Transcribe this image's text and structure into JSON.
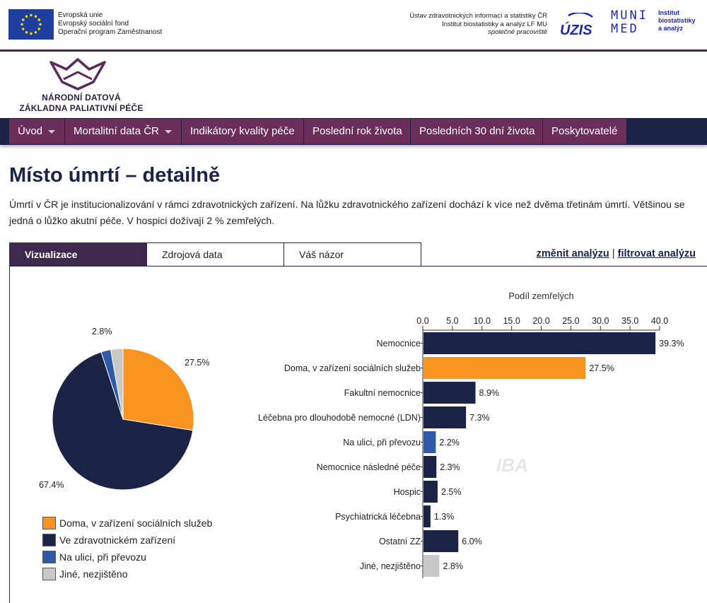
{
  "header": {
    "eu_lines": [
      "Evropská unie",
      "Evropský sociální fond",
      "Operační program Zaměstnanost"
    ],
    "uzis_lines": [
      "Ústav zdravotnických informací a statistiky ČR",
      "Institut biostatistiky a analýz LF MU"
    ],
    "uzis_italic": "společné pracoviště",
    "uzis_logo_text": "ÚZIS",
    "muni_line1": "MUNI",
    "muni_line2": "MED",
    "muni_sub": [
      "Institut",
      "biostatistiky",
      "a analýz"
    ]
  },
  "brand": {
    "line1": "NÁRODNÍ DATOVÁ",
    "line2": "ZÁKLADNA PALIATIVNÍ PÉČE"
  },
  "nav": [
    {
      "label": "Úvod",
      "dropdown": true
    },
    {
      "label": "Mortalitní data ČR",
      "dropdown": true
    },
    {
      "label": "Indikátory kvality péče",
      "dropdown": false
    },
    {
      "label": "Poslední rok života",
      "dropdown": false
    },
    {
      "label": "Posledních 30 dní života",
      "dropdown": false
    },
    {
      "label": "Poskytovatelé",
      "dropdown": false
    }
  ],
  "page": {
    "title": "Místo úmrtí – detailně",
    "intro": "Úmrtí v ČR je institucionalizování v rámci zdravotnických zařízení. Na lůžku zdravotnického zařízení dochází k více než dvěma třetinám úmrtí. Většinou se jedná o lůžko akutní péče. V hospici dožívají 2 % zemřelých."
  },
  "tabs": [
    {
      "label": "Vizualizace",
      "active": true
    },
    {
      "label": "Zdrojová data",
      "active": false
    },
    {
      "label": "Váš názor",
      "active": false
    }
  ],
  "tab_actions": {
    "change": "změnit analýzu",
    "separator": "|",
    "filter": "filtrovat analýzu"
  },
  "chart_data": [
    {
      "type": "pie",
      "slices": [
        {
          "label": "Doma, v zařízení sociálních služeb",
          "value": 27.5,
          "display": "27.5%",
          "color": "#f7931e"
        },
        {
          "label": "Ve zdravotnickém zařízení",
          "value": 67.4,
          "display": "67.4%",
          "color": "#1b2447"
        },
        {
          "label": "Na ulici, při převozu",
          "value": 2.2,
          "display": "",
          "color": "#2e5aa8"
        },
        {
          "label": "Jiné, nezjištěno",
          "value": 2.8,
          "display": "2.8%",
          "color": "#c8c8c8"
        }
      ]
    },
    {
      "type": "bar",
      "orientation": "horizontal",
      "title": "Podíl zemřelých",
      "xlim": [
        0,
        40
      ],
      "ticks": [
        "0.0",
        "5.0",
        "10.0",
        "15.0",
        "20.0",
        "25.0",
        "30.0",
        "35.0",
        "40.0"
      ],
      "categories": [
        "Nemocnice",
        "Doma, v zařízení sociálních služeb",
        "Fakultní nemocnice",
        "Léčebna pro dlouhodobě nemocné (LDN)",
        "Na ulici, při převozu",
        "Nemocnice následné péče",
        "Hospic",
        "Psychiatrická léčebna",
        "Ostatní ZZ",
        "Jiné, nezjištěno"
      ],
      "values": [
        39.3,
        27.5,
        8.9,
        7.3,
        2.2,
        2.3,
        2.5,
        1.3,
        6.0,
        2.8
      ],
      "value_labels": [
        "39.3%",
        "27.5%",
        "8.9%",
        "7.3%",
        "2.2%",
        "2.3%",
        "2.5%",
        "1.3%",
        "6.0%",
        "2.8%"
      ],
      "colors": [
        "#1b2447",
        "#f7931e",
        "#1b2447",
        "#1b2447",
        "#2e5aa8",
        "#1b2447",
        "#1b2447",
        "#1b2447",
        "#1b2447",
        "#c8c8c8"
      ],
      "watermark": "IBA"
    }
  ]
}
